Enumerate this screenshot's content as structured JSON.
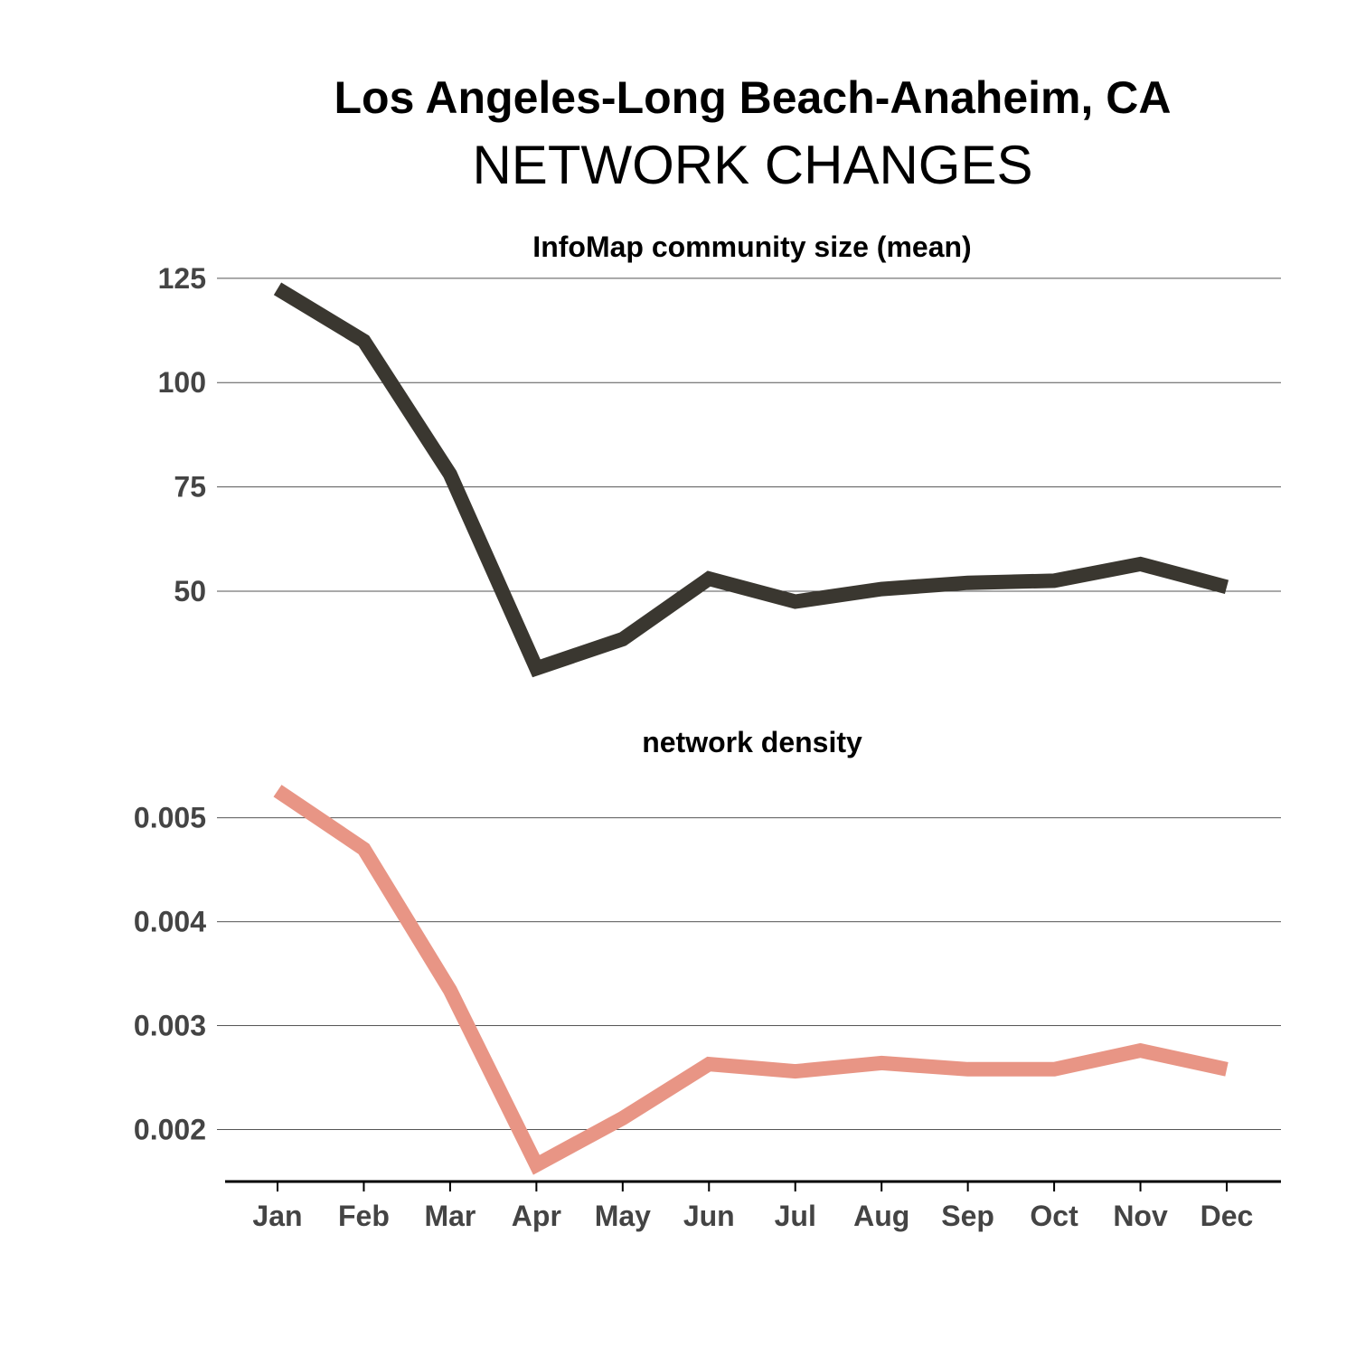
{
  "header": {
    "title": "Los Angeles-Long Beach-Anaheim, CA",
    "subtitle": "NETWORK CHANGES"
  },
  "chart_data": [
    {
      "type": "line",
      "title": "InfoMap community size (mean)",
      "categories": [
        "Jan",
        "Feb",
        "Mar",
        "Apr",
        "May",
        "Jun",
        "Jul",
        "Aug",
        "Sep",
        "Oct",
        "Nov",
        "Dec"
      ],
      "values": [
        122.5,
        110,
        78,
        31.5,
        38.5,
        53,
        47.5,
        50.5,
        52,
        52.5,
        56.5,
        51
      ],
      "yticks": [
        50,
        75,
        100,
        125
      ],
      "ylim": [
        25.5,
        128
      ],
      "color": "#3a3730",
      "grid": "horizontal"
    },
    {
      "type": "line",
      "title": "network density",
      "categories": [
        "Jan",
        "Feb",
        "Mar",
        "Apr",
        "May",
        "Jun",
        "Jul",
        "Aug",
        "Sep",
        "Oct",
        "Nov",
        "Dec"
      ],
      "values": [
        0.00526,
        0.0047,
        0.00334,
        0.00166,
        0.00211,
        0.00263,
        0.00256,
        0.00264,
        0.00258,
        0.00258,
        0.00276,
        0.00258
      ],
      "yticks": [
        0.002,
        0.003,
        0.004,
        0.005
      ],
      "tick_labels": [
        "0.002",
        "0.003",
        "0.004",
        "0.005"
      ],
      "ylim": [
        0.0015,
        0.00544
      ],
      "color": "#e89585",
      "grid": "horizontal"
    }
  ],
  "x_tick_labels": [
    "Jan",
    "Feb",
    "Mar",
    "Apr",
    "May",
    "Jun",
    "Jul",
    "Aug",
    "Sep",
    "Oct",
    "Nov",
    "Dec"
  ]
}
